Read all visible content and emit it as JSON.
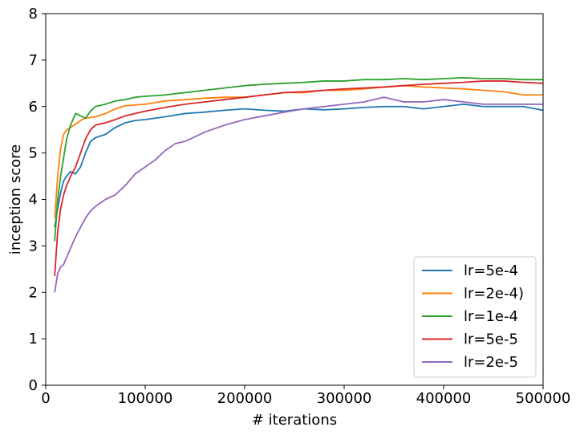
{
  "chart_data": {
    "type": "line",
    "xlabel": "# iterations",
    "ylabel": "inception score",
    "xlim": [
      0,
      500000
    ],
    "ylim": [
      0,
      8
    ],
    "xticks": [
      0,
      100000,
      200000,
      300000,
      400000,
      500000
    ],
    "yticks": [
      0,
      1,
      2,
      3,
      4,
      5,
      6,
      7,
      8
    ],
    "grid": false,
    "legend_position": "lower-right",
    "series": [
      {
        "name": "lr=5e-4",
        "color": "#1f77b4",
        "x": [
          9000,
          12000,
          15000,
          18000,
          21000,
          25000,
          30000,
          35000,
          40000,
          45000,
          50000,
          60000,
          70000,
          80000,
          90000,
          100000,
          120000,
          140000,
          160000,
          180000,
          200000,
          220000,
          240000,
          260000,
          280000,
          300000,
          320000,
          340000,
          360000,
          380000,
          400000,
          420000,
          440000,
          460000,
          480000,
          500000
        ],
        "y": [
          3.4,
          3.8,
          4.15,
          4.4,
          4.5,
          4.6,
          4.55,
          4.7,
          5.0,
          5.25,
          5.33,
          5.4,
          5.55,
          5.65,
          5.7,
          5.72,
          5.78,
          5.85,
          5.88,
          5.92,
          5.95,
          5.92,
          5.9,
          5.95,
          5.93,
          5.95,
          5.98,
          6.0,
          6.0,
          5.95,
          6.0,
          6.05,
          6.0,
          6.0,
          6.0,
          5.92
        ]
      },
      {
        "name": "lr=2e-4)",
        "color": "#ff7f0e",
        "x": [
          9000,
          12000,
          15000,
          18000,
          21000,
          25000,
          30000,
          35000,
          40000,
          50000,
          60000,
          70000,
          80000,
          100000,
          120000,
          140000,
          160000,
          180000,
          200000,
          220000,
          240000,
          260000,
          280000,
          300000,
          320000,
          340000,
          360000,
          380000,
          400000,
          420000,
          440000,
          460000,
          480000,
          500000
        ],
        "y": [
          3.6,
          4.5,
          5.1,
          5.4,
          5.5,
          5.55,
          5.62,
          5.7,
          5.75,
          5.78,
          5.85,
          5.95,
          6.02,
          6.05,
          6.12,
          6.15,
          6.18,
          6.2,
          6.2,
          6.25,
          6.3,
          6.3,
          6.35,
          6.35,
          6.38,
          6.42,
          6.45,
          6.42,
          6.4,
          6.38,
          6.35,
          6.32,
          6.25,
          6.25
        ]
      },
      {
        "name": "lr=1e-4",
        "color": "#2ca02c",
        "x": [
          9000,
          12000,
          15000,
          18000,
          21000,
          25000,
          30000,
          35000,
          40000,
          45000,
          50000,
          60000,
          70000,
          80000,
          90000,
          100000,
          120000,
          140000,
          160000,
          180000,
          200000,
          220000,
          240000,
          260000,
          280000,
          300000,
          320000,
          340000,
          360000,
          380000,
          400000,
          420000,
          440000,
          460000,
          480000,
          500000
        ],
        "y": [
          3.1,
          4.0,
          4.5,
          4.9,
          5.3,
          5.6,
          5.85,
          5.8,
          5.75,
          5.9,
          6.0,
          6.05,
          6.12,
          6.15,
          6.2,
          6.22,
          6.25,
          6.3,
          6.35,
          6.4,
          6.45,
          6.48,
          6.5,
          6.52,
          6.55,
          6.55,
          6.58,
          6.58,
          6.6,
          6.58,
          6.6,
          6.62,
          6.6,
          6.6,
          6.58,
          6.58
        ]
      },
      {
        "name": "lr=5e-5",
        "color": "#d62728",
        "x": [
          9000,
          12000,
          15000,
          18000,
          21000,
          25000,
          30000,
          35000,
          40000,
          45000,
          50000,
          60000,
          70000,
          80000,
          90000,
          100000,
          120000,
          140000,
          160000,
          180000,
          200000,
          220000,
          240000,
          260000,
          280000,
          300000,
          320000,
          340000,
          360000,
          380000,
          400000,
          420000,
          440000,
          460000,
          480000,
          500000
        ],
        "y": [
          2.35,
          3.3,
          3.8,
          4.1,
          4.3,
          4.5,
          4.7,
          5.0,
          5.3,
          5.5,
          5.6,
          5.65,
          5.72,
          5.8,
          5.85,
          5.9,
          5.98,
          6.05,
          6.1,
          6.15,
          6.2,
          6.25,
          6.3,
          6.32,
          6.35,
          6.38,
          6.4,
          6.42,
          6.45,
          6.48,
          6.5,
          6.52,
          6.55,
          6.55,
          6.52,
          6.5
        ]
      },
      {
        "name": "lr=2e-5",
        "color": "#9467bd",
        "x": [
          9000,
          12000,
          15000,
          18000,
          21000,
          25000,
          30000,
          35000,
          40000,
          45000,
          50000,
          60000,
          70000,
          80000,
          90000,
          100000,
          110000,
          120000,
          130000,
          140000,
          160000,
          180000,
          200000,
          220000,
          240000,
          260000,
          280000,
          300000,
          320000,
          340000,
          360000,
          380000,
          400000,
          420000,
          440000,
          460000,
          480000,
          500000
        ],
        "y": [
          2.0,
          2.4,
          2.55,
          2.6,
          2.75,
          2.95,
          3.2,
          3.4,
          3.6,
          3.75,
          3.85,
          4.0,
          4.1,
          4.3,
          4.55,
          4.7,
          4.85,
          5.05,
          5.2,
          5.25,
          5.45,
          5.6,
          5.72,
          5.8,
          5.88,
          5.95,
          6.0,
          6.05,
          6.1,
          6.2,
          6.1,
          6.1,
          6.15,
          6.1,
          6.05,
          6.05,
          6.05,
          6.05
        ]
      }
    ]
  }
}
